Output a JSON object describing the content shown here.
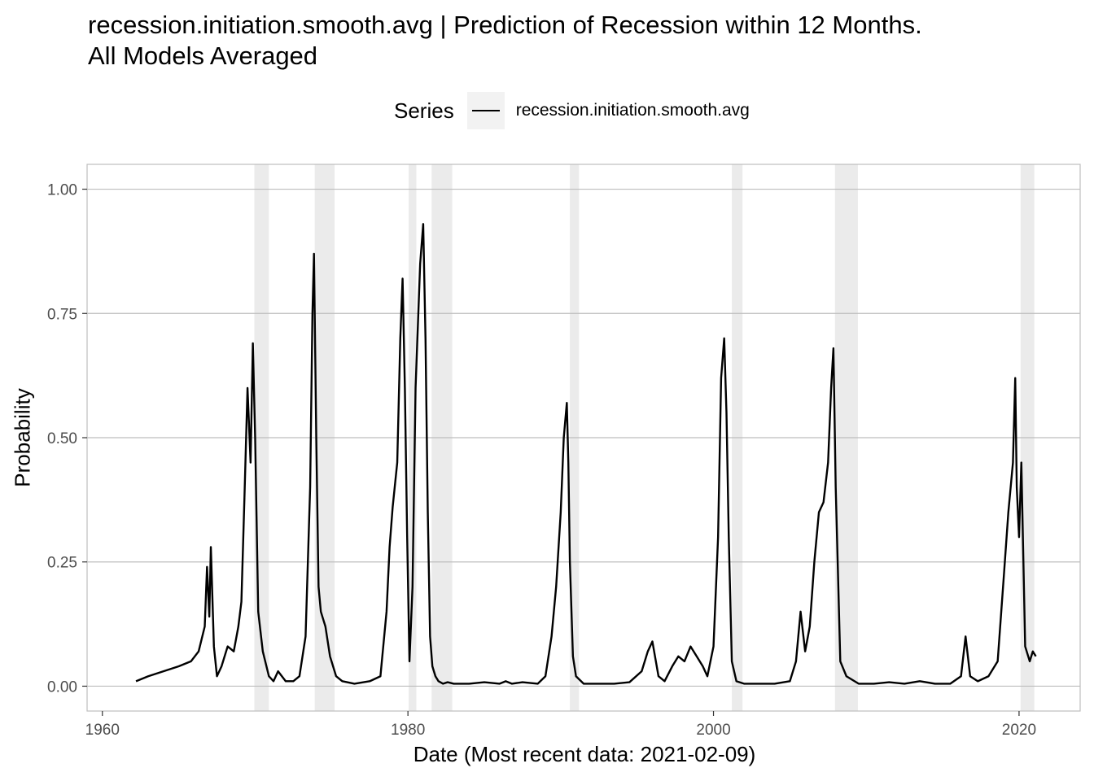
{
  "title": {
    "line1": "recession.initiation.smooth.avg | Prediction of Recession within 12 Months.",
    "line2": "All Models Averaged"
  },
  "chart_data": {
    "type": "line",
    "xlabel": "Date (Most recent data: 2021-02-09)",
    "ylabel": "Probability",
    "legend": {
      "title": "Series",
      "position": "top",
      "entries": [
        "recession.initiation.smooth.avg"
      ]
    },
    "xlim": [
      1959,
      2024
    ],
    "ylim": [
      -0.05,
      1.05
    ],
    "x_ticks": [
      1960,
      1980,
      2000,
      2020
    ],
    "x_tick_labels": [
      "1960",
      "1980",
      "2000",
      "2020"
    ],
    "y_ticks": [
      0,
      0.25,
      0.5,
      0.75,
      1
    ],
    "y_tick_labels": [
      "0.00",
      "0.25",
      "0.50",
      "0.75",
      "1.00"
    ],
    "grid": true,
    "recession_shading": [
      [
        1969.95,
        1970.9
      ],
      [
        1973.9,
        1975.2
      ],
      [
        1980.05,
        1980.55
      ],
      [
        1981.55,
        1982.9
      ],
      [
        1990.6,
        1991.2
      ],
      [
        2001.2,
        2001.9
      ],
      [
        2007.95,
        2009.45
      ],
      [
        2020.1,
        2021.0
      ]
    ],
    "colors": {
      "line": "#000000",
      "shading": "#ebebeb",
      "grid": "#bdbdbd",
      "panel_border": "#bdbdbd"
    },
    "series": [
      {
        "name": "recession.initiation.smooth.avg",
        "x": [
          1962.2,
          1963.0,
          1964.0,
          1965.0,
          1965.8,
          1966.3,
          1966.7,
          1966.85,
          1967.0,
          1967.1,
          1967.3,
          1967.5,
          1967.8,
          1968.2,
          1968.6,
          1968.9,
          1969.1,
          1969.3,
          1969.5,
          1969.7,
          1969.85,
          1970.0,
          1970.2,
          1970.5,
          1970.9,
          1971.2,
          1971.5,
          1972.0,
          1972.5,
          1972.9,
          1973.3,
          1973.6,
          1973.75,
          1973.85,
          1974.0,
          1974.15,
          1974.3,
          1974.6,
          1974.9,
          1975.3,
          1975.7,
          1976.5,
          1977.5,
          1978.2,
          1978.6,
          1978.8,
          1979.0,
          1979.3,
          1979.5,
          1979.65,
          1979.8,
          1979.95,
          1980.1,
          1980.3,
          1980.5,
          1980.8,
          1981.0,
          1981.15,
          1981.3,
          1981.45,
          1981.6,
          1981.8,
          1982.0,
          1982.3,
          1982.6,
          1983.0,
          1984.0,
          1985.0,
          1986.0,
          1986.4,
          1986.8,
          1987.5,
          1988.5,
          1989.0,
          1989.4,
          1989.7,
          1990.0,
          1990.2,
          1990.4,
          1990.5,
          1990.6,
          1990.8,
          1991.0,
          1991.5,
          1992.5,
          1993.5,
          1994.5,
          1995.3,
          1995.7,
          1996.0,
          1996.4,
          1996.8,
          1997.3,
          1997.7,
          1998.1,
          1998.5,
          1998.9,
          1999.3,
          1999.6,
          2000.0,
          2000.3,
          2000.5,
          2000.7,
          2000.85,
          2001.0,
          2001.2,
          2001.5,
          2002.0,
          2003.0,
          2004.0,
          2005.0,
          2005.4,
          2005.7,
          2006.0,
          2006.3,
          2006.6,
          2006.9,
          2007.2,
          2007.5,
          2007.7,
          2007.85,
          2008.0,
          2008.3,
          2008.7,
          2009.5,
          2010.5,
          2011.5,
          2012.5,
          2013.5,
          2014.5,
          2015.5,
          2016.2,
          2016.5,
          2016.8,
          2017.3,
          2018.0,
          2018.6,
          2019.0,
          2019.3,
          2019.6,
          2019.75,
          2019.85,
          2020.0,
          2020.15,
          2020.4,
          2020.7,
          2020.9,
          2021.1
        ],
        "y": [
          0.01,
          0.02,
          0.03,
          0.04,
          0.05,
          0.07,
          0.12,
          0.24,
          0.14,
          0.28,
          0.08,
          0.02,
          0.04,
          0.08,
          0.07,
          0.12,
          0.17,
          0.38,
          0.6,
          0.45,
          0.69,
          0.5,
          0.15,
          0.07,
          0.02,
          0.01,
          0.03,
          0.01,
          0.01,
          0.02,
          0.1,
          0.4,
          0.75,
          0.87,
          0.5,
          0.2,
          0.15,
          0.12,
          0.06,
          0.02,
          0.01,
          0.005,
          0.01,
          0.02,
          0.15,
          0.28,
          0.36,
          0.45,
          0.7,
          0.82,
          0.6,
          0.3,
          0.05,
          0.2,
          0.6,
          0.85,
          0.93,
          0.7,
          0.35,
          0.1,
          0.04,
          0.02,
          0.01,
          0.005,
          0.008,
          0.005,
          0.005,
          0.008,
          0.005,
          0.01,
          0.005,
          0.008,
          0.005,
          0.02,
          0.1,
          0.2,
          0.35,
          0.5,
          0.57,
          0.45,
          0.25,
          0.06,
          0.02,
          0.005,
          0.005,
          0.005,
          0.008,
          0.03,
          0.07,
          0.09,
          0.02,
          0.01,
          0.04,
          0.06,
          0.05,
          0.08,
          0.06,
          0.04,
          0.02,
          0.08,
          0.3,
          0.62,
          0.7,
          0.55,
          0.3,
          0.05,
          0.01,
          0.005,
          0.005,
          0.005,
          0.01,
          0.05,
          0.15,
          0.07,
          0.12,
          0.25,
          0.35,
          0.37,
          0.45,
          0.6,
          0.68,
          0.4,
          0.05,
          0.02,
          0.005,
          0.005,
          0.008,
          0.005,
          0.01,
          0.005,
          0.005,
          0.02,
          0.1,
          0.02,
          0.01,
          0.02,
          0.05,
          0.22,
          0.35,
          0.45,
          0.62,
          0.4,
          0.3,
          0.45,
          0.08,
          0.05,
          0.07,
          0.06
        ]
      }
    ]
  }
}
